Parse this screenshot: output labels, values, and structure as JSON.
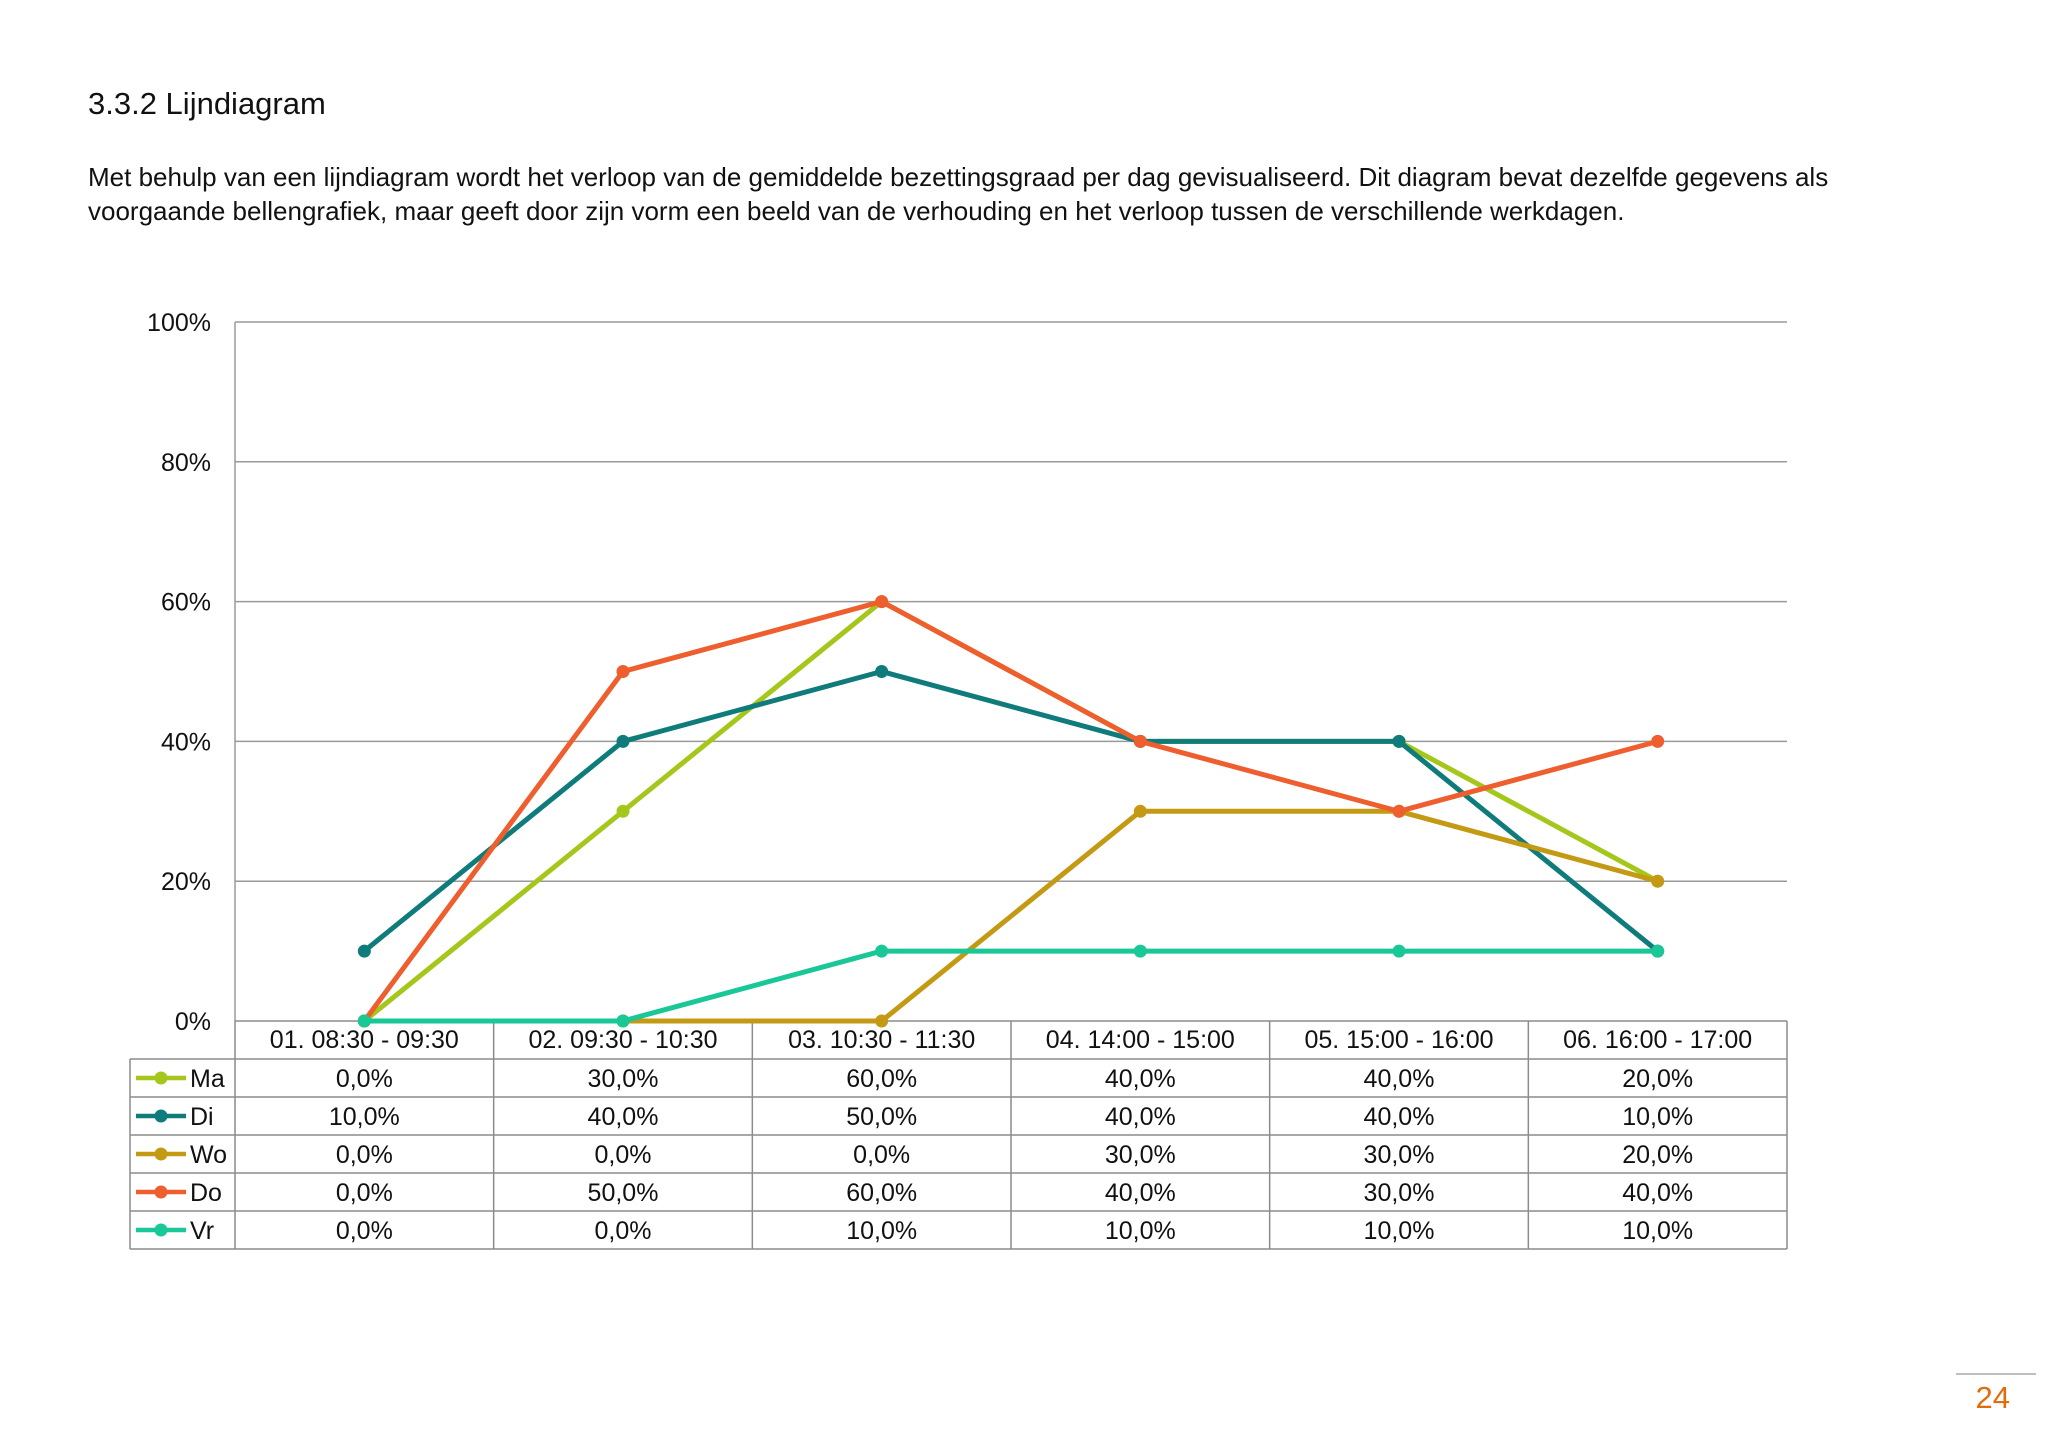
{
  "heading": "3.3.2 Lijndiagram",
  "intro": "Met behulp van een lijndiagram wordt het verloop van de gemiddelde bezettingsgraad per dag gevisualiseerd. Dit diagram bevat dezelfde gegevens als voorgaande bellengrafiek, maar geeft door zijn vorm een beeld van de verhouding en het verloop tussen de verschillende werkdagen.",
  "page_number": "24",
  "chart_data": {
    "type": "line",
    "title": "",
    "xlabel": "",
    "ylabel": "",
    "ylim": [
      0,
      100
    ],
    "y_ticks": [
      "0%",
      "20%",
      "40%",
      "60%",
      "80%",
      "100%"
    ],
    "y_tick_values": [
      0,
      20,
      40,
      60,
      80,
      100
    ],
    "grid": true,
    "legend": "data-table-below",
    "categories": [
      "01. 08:30 - 09:30",
      "02. 09:30 - 10:30",
      "03. 10:30 - 11:30",
      "04. 14:00 - 15:00",
      "05. 15:00 - 16:00",
      "06. 16:00 - 17:00"
    ],
    "series": [
      {
        "name": "Ma",
        "color": "#a5c71c",
        "values": [
          0,
          30,
          60,
          40,
          40,
          20
        ],
        "labels": [
          "0,0%",
          "30,0%",
          "60,0%",
          "40,0%",
          "40,0%",
          "20,0%"
        ]
      },
      {
        "name": "Di",
        "color": "#0f7b7b",
        "values": [
          10,
          40,
          50,
          40,
          40,
          10
        ],
        "labels": [
          "10,0%",
          "40,0%",
          "50,0%",
          "40,0%",
          "40,0%",
          "10,0%"
        ]
      },
      {
        "name": "Wo",
        "color": "#c49a14",
        "values": [
          0,
          0,
          0,
          30,
          30,
          20
        ],
        "labels": [
          "0,0%",
          "0,0%",
          "0,0%",
          "30,0%",
          "30,0%",
          "20,0%"
        ]
      },
      {
        "name": "Do",
        "color": "#ee5e2e",
        "values": [
          0,
          50,
          60,
          40,
          30,
          40
        ],
        "labels": [
          "0,0%",
          "50,0%",
          "60,0%",
          "40,0%",
          "30,0%",
          "40,0%"
        ]
      },
      {
        "name": "Vr",
        "color": "#19c797",
        "values": [
          0,
          0,
          10,
          10,
          10,
          10
        ],
        "labels": [
          "0,0%",
          "0,0%",
          "10,0%",
          "10,0%",
          "10,0%",
          "10,0%"
        ]
      }
    ]
  }
}
